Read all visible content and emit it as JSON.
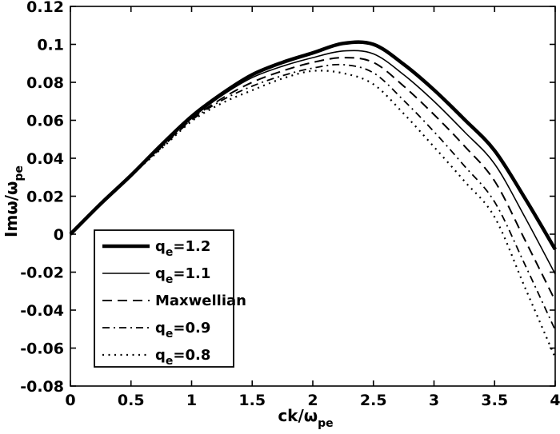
{
  "figure": {
    "background": "#ffffff",
    "ink": "#000000"
  },
  "chart_data": {
    "type": "line",
    "title": "",
    "xlabel": {
      "main": "ck/ω",
      "sub": "pe"
    },
    "ylabel": {
      "main": "Imω/ω",
      "sub": "pe"
    },
    "xlim": [
      0,
      4
    ],
    "ylim": [
      -0.08,
      0.12
    ],
    "grid": false,
    "legend_position": "lower-left",
    "xticks": {
      "values": [
        0,
        0.5,
        1,
        1.5,
        2,
        2.5,
        3,
        3.5,
        4
      ],
      "labels": [
        "0",
        "0.5",
        "1",
        "1.5",
        "2",
        "2.5",
        "3",
        "3.5",
        "4"
      ]
    },
    "yticks": {
      "values": [
        -0.08,
        -0.06,
        -0.04,
        -0.02,
        0,
        0.02,
        0.04,
        0.06,
        0.08,
        0.1,
        0.12
      ],
      "labels": [
        "-0.08",
        "-0.06",
        "-0.04",
        "-0.02",
        "0",
        "0.02",
        "0.04",
        "0.06",
        "0.08",
        "0.1",
        "0.12"
      ]
    },
    "x": [
      0,
      0.25,
      0.5,
      0.75,
      1.0,
      1.25,
      1.5,
      1.75,
      2.0,
      2.25,
      2.5,
      2.75,
      3.0,
      3.25,
      3.5,
      3.75,
      4.0
    ],
    "series": [
      {
        "id": "qe-1.2",
        "label": {
          "main": "q",
          "sub": "e",
          "rest": "=1.2"
        },
        "style": "thick-solid",
        "values": [
          0,
          0.016,
          0.031,
          0.047,
          0.062,
          0.074,
          0.084,
          0.0905,
          0.0955,
          0.1005,
          0.1,
          0.0895,
          0.076,
          0.0605,
          0.044,
          0.019,
          -0.008
        ]
      },
      {
        "id": "qe-1.1",
        "label": {
          "main": "q",
          "sub": "e",
          "rest": "=1.1"
        },
        "style": "thin-solid",
        "values": [
          0,
          0.016,
          0.031,
          0.0465,
          0.061,
          0.073,
          0.0825,
          0.0885,
          0.093,
          0.0965,
          0.095,
          0.084,
          0.07,
          0.054,
          0.037,
          0.009,
          -0.021
        ]
      },
      {
        "id": "maxwellian",
        "label": {
          "main": "Maxwellian",
          "sub": "",
          "rest": ""
        },
        "style": "dashed",
        "values": [
          0,
          0.016,
          0.031,
          0.046,
          0.0605,
          0.0715,
          0.08,
          0.086,
          0.0905,
          0.093,
          0.0905,
          0.078,
          0.063,
          0.0465,
          0.028,
          -0.003,
          -0.035
        ]
      },
      {
        "id": "qe-0.9",
        "label": {
          "main": "q",
          "sub": "e",
          "rest": "=0.9"
        },
        "style": "dash-dot",
        "values": [
          0,
          0.016,
          0.031,
          0.0455,
          0.06,
          0.0705,
          0.078,
          0.0835,
          0.0875,
          0.0893,
          0.085,
          0.0705,
          0.054,
          0.036,
          0.017,
          -0.016,
          -0.0505
        ]
      },
      {
        "id": "qe-0.8",
        "label": {
          "main": "q",
          "sub": "e",
          "rest": "=0.8"
        },
        "style": "dotted",
        "values": [
          0,
          0.016,
          0.031,
          0.045,
          0.0595,
          0.069,
          0.0758,
          0.082,
          0.086,
          0.0848,
          0.079,
          0.0635,
          0.046,
          0.028,
          0.009,
          -0.028,
          -0.065
        ]
      }
    ]
  }
}
